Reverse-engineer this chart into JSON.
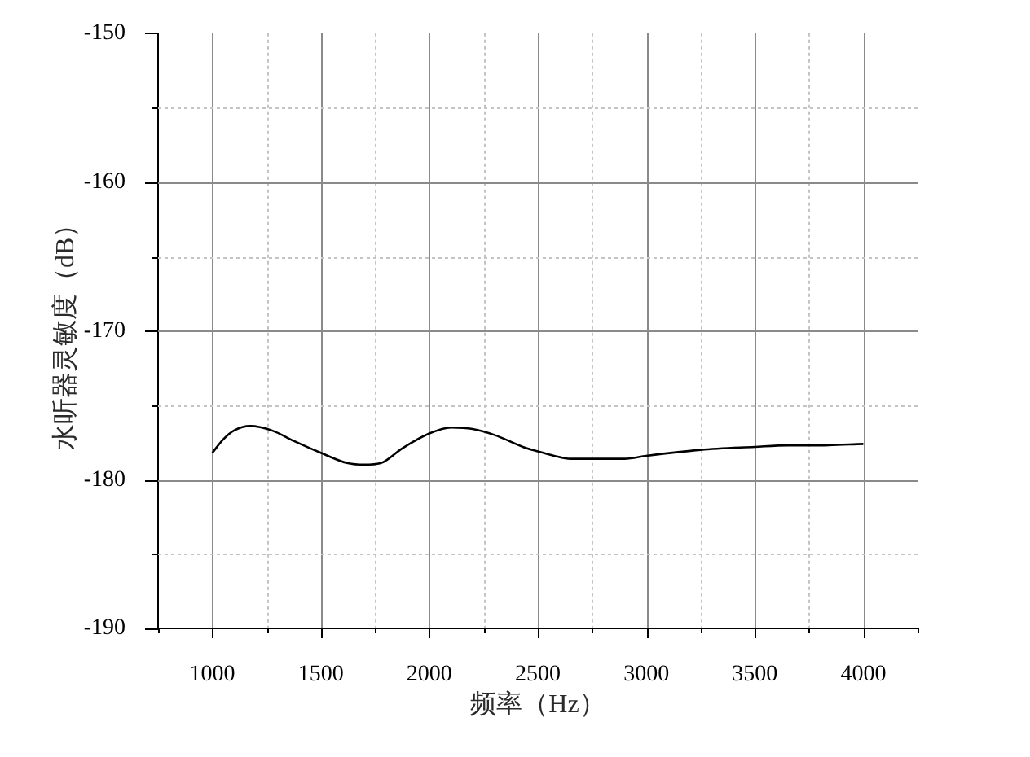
{
  "chart_data": {
    "type": "line",
    "xlabel": "频率（Hz）",
    "ylabel": "水听器灵敏度（dB）",
    "x": [
      1000,
      1050,
      1100,
      1175,
      1275,
      1375,
      1500,
      1625,
      1700,
      1775,
      1875,
      2000,
      2100,
      2200,
      2300,
      2450,
      2500,
      2575,
      2650,
      2750,
      2900,
      3000,
      3250,
      3500,
      3650,
      3800,
      4000
    ],
    "values": [
      -178.2,
      -177.3,
      -176.7,
      -176.4,
      -176.7,
      -177.4,
      -178.2,
      -178.9,
      -179.0,
      -178.9,
      -177.9,
      -176.9,
      -176.5,
      -176.6,
      -177.0,
      -177.9,
      -178.1,
      -178.4,
      -178.6,
      -178.6,
      -178.6,
      -178.4,
      -178.0,
      -177.8,
      -177.7,
      -177.7,
      -177.6
    ],
    "color": "#000000",
    "xlim": [
      750,
      4250
    ],
    "xticks": [
      {
        "value": 750,
        "label": null
      },
      1000,
      {
        "value": 1250,
        "label": null
      },
      1500,
      {
        "value": 1750,
        "label": null
      },
      2000,
      {
        "value": 2250,
        "label": null
      },
      2500,
      {
        "value": 2750,
        "label": null
      },
      3000,
      {
        "value": 3250,
        "label": null
      },
      3500,
      {
        "value": 3750,
        "label": null
      },
      4000,
      {
        "value": 4250,
        "label": null
      }
    ],
    "ylim": [
      -190,
      -150
    ],
    "yticks": [
      -190,
      {
        "value": -185,
        "label": null
      },
      -180,
      {
        "value": -175,
        "label": null
      },
      -170,
      {
        "value": -165,
        "label": null
      },
      -160,
      {
        "value": -155,
        "label": null
      },
      -150
    ],
    "grid": true
  }
}
